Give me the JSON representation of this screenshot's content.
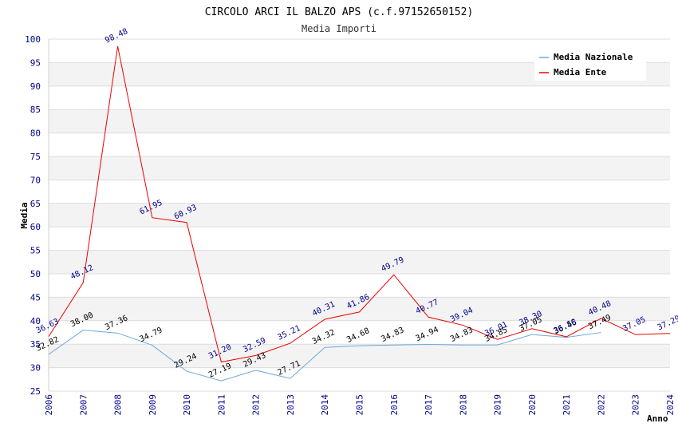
{
  "chart_data": {
    "type": "line",
    "title": "CIRCOLO ARCI IL BALZO APS (c.f.97152650152)",
    "subtitle": "Media Importi",
    "xlabel": "Anno",
    "ylabel": "Media",
    "ylim": [
      25,
      100
    ],
    "yticks": [
      "25",
      "30",
      "35",
      "40",
      "45",
      "50",
      "55",
      "60",
      "65",
      "70",
      "75",
      "80",
      "85",
      "90",
      "95",
      "100"
    ],
    "categories": [
      "2006",
      "2007",
      "2008",
      "2009",
      "2010",
      "2011",
      "2012",
      "2013",
      "2014",
      "2015",
      "2016",
      "2017",
      "2018",
      "2019",
      "2020",
      "2021",
      "2022",
      "2023",
      "2024"
    ],
    "legend_position": "top-right",
    "series": [
      {
        "name": "Media Nazionale",
        "color": "#6fa8dc",
        "values": [
          32.82,
          38.0,
          37.36,
          34.79,
          29.24,
          27.19,
          29.43,
          27.71,
          34.32,
          34.68,
          34.83,
          34.94,
          34.83,
          34.85,
          37.05,
          36.46,
          37.49,
          null,
          null
        ],
        "labels": [
          "32.82",
          "38.00",
          "37.36",
          "34.79",
          "29.24",
          "27.19",
          "29.43",
          "27.71",
          "34.32",
          "34.68",
          "34.83",
          "34.94",
          "34.83",
          "34.85",
          "37.05",
          "36.46",
          "37.49",
          null,
          null
        ]
      },
      {
        "name": "Media Ente",
        "color": "#ee0000",
        "values": [
          36.63,
          48.12,
          98.48,
          61.95,
          60.93,
          31.2,
          32.59,
          35.21,
          40.31,
          41.86,
          49.79,
          40.77,
          39.04,
          36.01,
          38.3,
          36.58,
          40.48,
          37.05,
          37.29
        ],
        "labels": [
          "36.63",
          "48.12",
          "98.48",
          "61.95",
          "60.93",
          "31.20",
          "32.59",
          "35.21",
          "40.31",
          "41.86",
          "49.79",
          "40.77",
          "39.04",
          "36.01",
          "38.30",
          "36.58",
          "40.48",
          "37.05",
          "37.29"
        ]
      }
    ]
  }
}
